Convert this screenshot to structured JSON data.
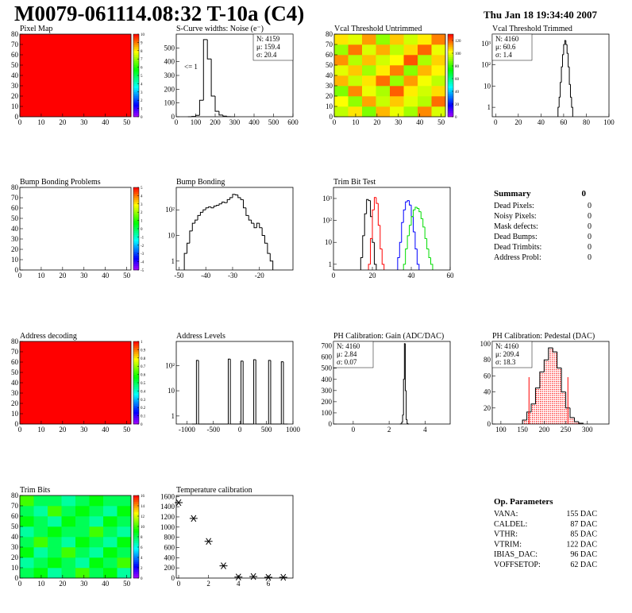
{
  "header": {
    "title": "M0079-061114.08:32 T-10a (C4)",
    "date": "Thu Jan 18 19:34:40 2007"
  },
  "chart_data": [
    {
      "type": "heatmap",
      "title": "Pixel Map",
      "xlim": [
        0,
        52
      ],
      "ylim": [
        0,
        80
      ],
      "xticks": [
        0,
        10,
        20,
        30,
        40,
        50
      ],
      "yticks": [
        0,
        10,
        20,
        30,
        40,
        50,
        60,
        70,
        80
      ],
      "zlim": [
        0,
        10
      ],
      "zticks": [
        0,
        1,
        2,
        3,
        4,
        5,
        6,
        7,
        8,
        9,
        10
      ],
      "values": [
        [
          10
        ]
      ]
    },
    {
      "type": "hist",
      "title": "S-Curve widths: Noise (e⁻)",
      "xlim": [
        0,
        600
      ],
      "ylim": [
        0,
        600
      ],
      "xticks": [
        0,
        100,
        200,
        300,
        400,
        500,
        600
      ],
      "yticks": [
        0,
        100,
        200,
        300,
        400,
        500
      ],
      "log_y": false,
      "series": [
        {
          "color": "#000000",
          "bins": [
            60,
            80,
            100,
            120,
            140,
            160,
            180,
            200,
            220,
            240,
            260,
            280,
            300
          ],
          "values": [
            0,
            2,
            10,
            120,
            560,
            420,
            150,
            40,
            12,
            4,
            1,
            0
          ]
        }
      ],
      "stats": [
        {
          "text": "N: 4159",
          "color": "#000000"
        },
        {
          "text": "μ: 159.4",
          "color": "#000000"
        },
        {
          "text": "σ: 20.4",
          "color": "#000000"
        }
      ],
      "stats_corner": "upper right",
      "annotation": "<= 1"
    },
    {
      "type": "heatmap",
      "title": "Vcal Threshold Untrimmed",
      "xlim": [
        0,
        52
      ],
      "ylim": [
        0,
        80
      ],
      "xticks": [
        0,
        10,
        20,
        30,
        40,
        50
      ],
      "yticks": [
        0,
        10,
        20,
        30,
        40,
        50,
        60,
        70,
        80
      ],
      "zlim": [
        0,
        130
      ],
      "zticks": [
        0,
        20,
        40,
        60,
        80,
        100,
        120
      ],
      "values": [
        [
          95,
          105,
          88,
          110,
          100,
          92,
          115,
          98
        ],
        [
          102,
          90,
          112,
          96,
          108,
          99,
          94,
          118
        ],
        [
          88,
          115,
          100,
          93,
          120,
          104,
          97,
          106
        ],
        [
          110,
          96,
          105,
          118,
          91,
          113,
          101,
          95
        ],
        [
          99,
          108,
          92,
          104,
          116,
          89,
          110,
          103
        ],
        [
          114,
          94,
          109,
          97,
          102,
          121,
          93,
          107
        ],
        [
          91,
          117,
          98,
          111,
          95,
          106,
          119,
          100
        ],
        [
          105,
          99,
          113,
          90,
          108,
          97,
          104,
          116
        ]
      ]
    },
    {
      "type": "hist",
      "title": "Vcal Threshold Trimmed",
      "xlim": [
        -3,
        100
      ],
      "ylim": [
        0.36,
        2800
      ],
      "xticks": [
        0,
        20,
        40,
        60,
        80,
        100
      ],
      "yticks": [
        1,
        10,
        {
          "value": 100,
          "label": "10²"
        },
        {
          "value": 1000,
          "label": "10³"
        }
      ],
      "log_y": true,
      "series": [
        {
          "color": "#000000",
          "bins": [
            55,
            56,
            57,
            58,
            59,
            60,
            61,
            62,
            63,
            64,
            65,
            66,
            67,
            68
          ],
          "values": [
            1,
            3,
            15,
            80,
            300,
            900,
            1400,
            900,
            350,
            80,
            12,
            3,
            1
          ]
        }
      ],
      "stats": [
        {
          "text": "N: 4160",
          "color": "#000000"
        },
        {
          "text": "μ: 60.6",
          "color": "#000000"
        },
        {
          "text": "σ:  1.4",
          "color": "#000000"
        }
      ],
      "stats_corner": "upper left"
    },
    {
      "type": "heatmap",
      "title": "Bump Bonding Problems",
      "xlim": [
        0,
        52
      ],
      "ylim": [
        0,
        80
      ],
      "xticks": [
        0,
        10,
        20,
        30,
        40,
        50
      ],
      "yticks": [
        0,
        10,
        20,
        30,
        40,
        50,
        60,
        70,
        80
      ],
      "zlim": [
        -5,
        5
      ],
      "zticks": [
        -5,
        -4,
        -3,
        -2,
        -1,
        0,
        1,
        2,
        3,
        4,
        5
      ],
      "values": []
    },
    {
      "type": "hist",
      "title": "Bump Bonding",
      "xlim": [
        -51,
        -7.5
      ],
      "ylim": [
        0.45,
        750
      ],
      "xticks": [
        -50,
        -40,
        -30,
        -20
      ],
      "yticks": [
        1,
        10,
        {
          "value": 100,
          "label": "10²"
        }
      ],
      "log_y": true,
      "series": [
        {
          "color": "#000000",
          "bins": [
            -48,
            -47,
            -46,
            -45,
            -44,
            -43,
            -42,
            -41,
            -40,
            -39,
            -38,
            -37,
            -36,
            -35,
            -34,
            -33,
            -32,
            -31,
            -30,
            -29,
            -28,
            -27,
            -26,
            -25,
            -24,
            -23,
            -22,
            -21,
            -20,
            -19,
            -18,
            -17,
            -16,
            -15
          ],
          "values": [
            2,
            5,
            15,
            30,
            40,
            60,
            80,
            100,
            120,
            130,
            120,
            140,
            150,
            170,
            200,
            190,
            250,
            300,
            400,
            380,
            300,
            250,
            120,
            60,
            40,
            30,
            20,
            30,
            20,
            10,
            5,
            2,
            1
          ]
        }
      ]
    },
    {
      "type": "hist",
      "title": "Trim Bit Test",
      "xlim": [
        0,
        60
      ],
      "ylim": [
        0.55,
        3200
      ],
      "xticks": [
        0,
        20,
        40,
        60
      ],
      "yticks": [
        1,
        10,
        {
          "value": 100,
          "label": "10²"
        },
        {
          "value": 1000,
          "label": "10³"
        }
      ],
      "log_y": true,
      "series": [
        {
          "color": "#000000",
          "bins": [
            14,
            15,
            16,
            17,
            18,
            19,
            20,
            21,
            22
          ],
          "values": [
            2,
            20,
            200,
            900,
            800,
            150,
            10,
            1
          ]
        },
        {
          "color": "#ff0000",
          "bins": [
            18,
            19,
            20,
            21,
            22,
            23,
            24,
            25,
            26
          ],
          "values": [
            1,
            15,
            300,
            1100,
            600,
            60,
            5,
            1
          ]
        },
        {
          "color": "#0000ff",
          "bins": [
            33,
            34,
            35,
            36,
            37,
            38,
            39,
            40,
            41,
            42,
            43,
            44
          ],
          "values": [
            2,
            10,
            80,
            300,
            700,
            800,
            500,
            150,
            30,
            5,
            1
          ]
        },
        {
          "color": "#00dd00",
          "bins": [
            36,
            37,
            38,
            39,
            40,
            41,
            42,
            43,
            44,
            45,
            46,
            47,
            48,
            49,
            50,
            51
          ],
          "values": [
            1,
            5,
            20,
            60,
            150,
            300,
            400,
            350,
            250,
            120,
            50,
            15,
            5,
            2,
            1
          ]
        }
      ]
    },
    {
      "type": "heatmap",
      "title": "Address decoding",
      "xlim": [
        0,
        52
      ],
      "ylim": [
        0,
        80
      ],
      "xticks": [
        0,
        10,
        20,
        30,
        40,
        50
      ],
      "yticks": [
        0,
        10,
        20,
        30,
        40,
        50,
        60,
        70,
        80
      ],
      "zlim": [
        0,
        1
      ],
      "zticks": [
        0,
        0.1,
        0.2,
        0.3,
        0.4,
        0.5,
        0.6,
        0.7,
        0.8,
        0.9,
        1
      ],
      "values": [
        [
          1
        ]
      ]
    },
    {
      "type": "hist",
      "title": "Address Levels",
      "xlim": [
        -1200,
        1000
      ],
      "ylim": [
        0.48,
        900
      ],
      "xticks": [
        -1000,
        -500,
        0,
        500,
        1000
      ],
      "yticks": [
        1,
        10,
        {
          "value": 100,
          "label": "10²"
        }
      ],
      "log_y": true,
      "series": [
        {
          "color": "#000000",
          "bins": [
            -900,
            -860,
            -820,
            -780,
            -740,
            -700,
            -660,
            -620,
            -580,
            -540,
            -500,
            -460,
            -420,
            -380,
            -340,
            -300,
            -260,
            -220,
            -180,
            -140,
            -100,
            -60,
            -20,
            20,
            60,
            100,
            140,
            180,
            220,
            260,
            300,
            340,
            380,
            420,
            460,
            500,
            540,
            580,
            620,
            660,
            700,
            740,
            780,
            820,
            860,
            900
          ],
          "values": [
            0,
            0,
            160,
            0,
            0,
            0,
            0,
            0,
            0,
            0,
            0,
            0,
            0,
            0,
            0,
            0,
            0,
            180,
            0,
            0,
            0,
            0,
            0,
            150,
            0,
            0,
            0,
            0,
            0,
            170,
            0,
            0,
            0,
            0,
            0,
            0,
            160,
            0,
            0,
            0,
            0,
            0,
            140,
            0,
            0
          ]
        }
      ]
    },
    {
      "type": "hist",
      "title": "PH Calibration: Gain (ADC/DAC)",
      "xlim": [
        -1.1,
        5.4
      ],
      "ylim": [
        0,
        740
      ],
      "xticks": [
        0,
        2,
        4
      ],
      "yticks": [
        0,
        100,
        200,
        300,
        400,
        500,
        600,
        700
      ],
      "log_y": false,
      "series": [
        {
          "color": "#000000",
          "bins": [
            2.6,
            2.65,
            2.7,
            2.75,
            2.8,
            2.85,
            2.9,
            2.95,
            3,
            3.05,
            3.1
          ],
          "values": [
            0,
            2,
            15,
            80,
            400,
            720,
            300,
            40,
            5,
            0
          ]
        }
      ],
      "stats": [
        {
          "text": "N: 4160",
          "color": "#000000"
        },
        {
          "text": "μ: 2.84",
          "color": "#000000"
        },
        {
          "text": "σ: 0.07",
          "color": "#000000"
        }
      ],
      "stats_corner": "upper left"
    },
    {
      "type": "hist",
      "title": "PH Calibration: Pedestal (DAC)",
      "xlim": [
        80,
        350
      ],
      "ylim": [
        0,
        103
      ],
      "xticks": [
        100,
        150,
        200,
        250,
        300
      ],
      "yticks": [
        0,
        20,
        40,
        60,
        80,
        100
      ],
      "log_y": false,
      "series": [
        {
          "color": "#000000",
          "fill_color": "#ff0000",
          "bins": [
            150,
            160,
            170,
            180,
            190,
            200,
            210,
            220,
            230,
            240,
            250,
            260,
            270,
            280,
            290
          ],
          "values": [
            5,
            15,
            25,
            45,
            65,
            80,
            95,
            90,
            70,
            40,
            20,
            8,
            3,
            1
          ]
        }
      ],
      "fit_range": [
        165,
        255
      ],
      "fit_color": "#ff0000",
      "stats": [
        {
          "text": "N: 4160",
          "color": "#000000"
        },
        {
          "text": "μ: 209.4",
          "color": "#ff0000"
        },
        {
          "text": "σ: 18.3",
          "color": "#ff0000"
        }
      ],
      "stats_corner": "upper left"
    },
    {
      "type": "heatmap",
      "title": "Trim Bits",
      "xlim": [
        0,
        52
      ],
      "ylim": [
        0,
        80
      ],
      "xticks": [
        0,
        10,
        20,
        30,
        40,
        50
      ],
      "yticks": [
        0,
        10,
        20,
        30,
        40,
        50,
        60,
        70,
        80
      ],
      "zlim": [
        0,
        16
      ],
      "zticks": [
        0,
        2,
        4,
        6,
        8,
        10,
        12,
        14,
        16
      ],
      "values": [
        [
          8,
          9,
          7,
          8,
          10,
          8,
          9,
          7
        ],
        [
          7,
          8,
          9,
          8,
          7,
          9,
          8,
          10
        ],
        [
          9,
          7,
          8,
          10,
          8,
          7,
          9,
          8
        ],
        [
          8,
          10,
          8,
          7,
          9,
          8,
          7,
          9
        ],
        [
          7,
          8,
          9,
          8,
          8,
          10,
          8,
          7
        ],
        [
          9,
          8,
          7,
          9,
          8,
          7,
          9,
          8
        ],
        [
          8,
          7,
          10,
          8,
          9,
          8,
          7,
          9
        ],
        [
          10,
          8,
          8,
          7,
          8,
          9,
          8,
          8
        ]
      ]
    },
    {
      "type": "scatter",
      "title": "Temperature calibration",
      "xlim": [
        -0.16,
        7.65
      ],
      "ylim": [
        0,
        1620
      ],
      "xticks": [
        0,
        2,
        4,
        6
      ],
      "yticks": [
        0,
        200,
        400,
        600,
        800,
        1000,
        1200,
        1400,
        1600
      ],
      "color": "#000000",
      "x": [
        0,
        1,
        2,
        3,
        4,
        5,
        6,
        7
      ],
      "values": [
        1480,
        1170,
        720,
        240,
        20,
        30,
        15,
        15
      ]
    }
  ],
  "summary": {
    "title": "Summary",
    "value": 0,
    "rows": [
      [
        "Dead Pixels:",
        0
      ],
      [
        "Noisy Pixels:",
        0
      ],
      [
        "Mask defects:",
        0
      ],
      [
        "Dead Bumps:",
        0
      ],
      [
        "Dead Trimbits:",
        0
      ],
      [
        "Address Probl:",
        0
      ]
    ]
  },
  "op_parameters": {
    "title": "Op. Parameters",
    "rows": [
      [
        "VANA:",
        "155 DAC"
      ],
      [
        "CALDEL:",
        "87 DAC"
      ],
      [
        "VTHR:",
        "85 DAC"
      ],
      [
        "VTRIM:",
        "122 DAC"
      ],
      [
        "IBIAS_DAC:",
        "96 DAC"
      ],
      [
        "VOFFSETOP:",
        "62 DAC"
      ]
    ]
  }
}
